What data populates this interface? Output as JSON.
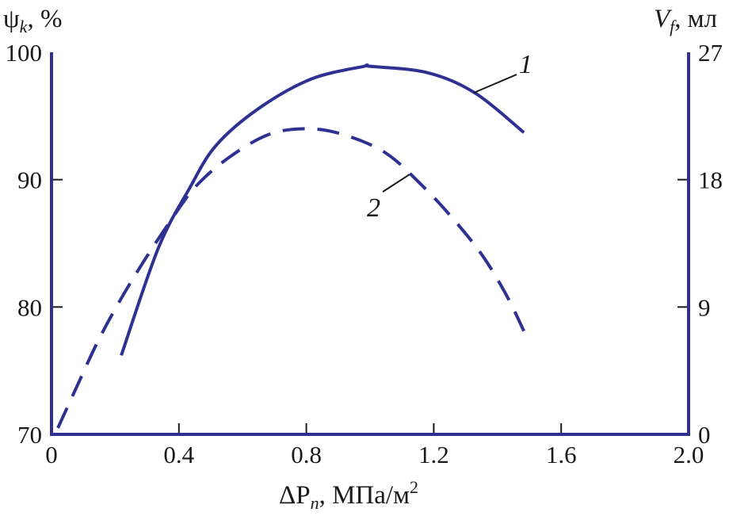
{
  "chart_data": {
    "type": "line",
    "title": "",
    "xlabel": {
      "main": "ΔP",
      "sub": "n",
      "rest": ", МПа/м",
      "sup": "2"
    },
    "ylabel_left": {
      "main": "ψ",
      "sub": "k",
      "rest": ", %"
    },
    "ylabel_right": {
      "main": "V",
      "sub": "f",
      "rest": ", мл"
    },
    "xlim": [
      0,
      2.0
    ],
    "ylim_left": [
      70,
      100
    ],
    "ylim_right": [
      0,
      27
    ],
    "x_ticks": [
      "0",
      "0.4",
      "0.8",
      "1.2",
      "1.6",
      "2.0"
    ],
    "y_ticks_left": [
      "70",
      "80",
      "90",
      "100"
    ],
    "y_ticks_right": [
      "0",
      "9",
      "18",
      "27"
    ],
    "grid": false,
    "colors": {
      "line": "#2e3192",
      "axis": "#2e3192",
      "text": "#1a1a1a"
    },
    "series": [
      {
        "name": "1",
        "axis": "left",
        "style": "solid",
        "x": [
          0.219,
          0.335,
          0.435,
          0.517,
          0.651,
          0.815,
          0.981,
          1.0,
          1.18,
          1.33,
          1.483
        ],
        "y": [
          76.2,
          84.6,
          89.4,
          92.7,
          95.6,
          97.9,
          98.9,
          98.9,
          98.4,
          96.8,
          93.7
        ]
      },
      {
        "name": "2",
        "axis": "right",
        "style": "dashed",
        "x": [
          0.02,
          0.08,
          0.144,
          0.211,
          0.286,
          0.368,
          0.452,
          0.559,
          0.683,
          0.8,
          0.914,
          1.048,
          1.163,
          1.262,
          1.354,
          1.429,
          1.483
        ],
        "y": [
          0.45,
          3.4,
          6.5,
          9.3,
          12.1,
          14.9,
          17.5,
          19.6,
          21.2,
          21.6,
          21.2,
          19.9,
          17.6,
          15.2,
          12.6,
          9.8,
          7.3
        ]
      }
    ]
  }
}
